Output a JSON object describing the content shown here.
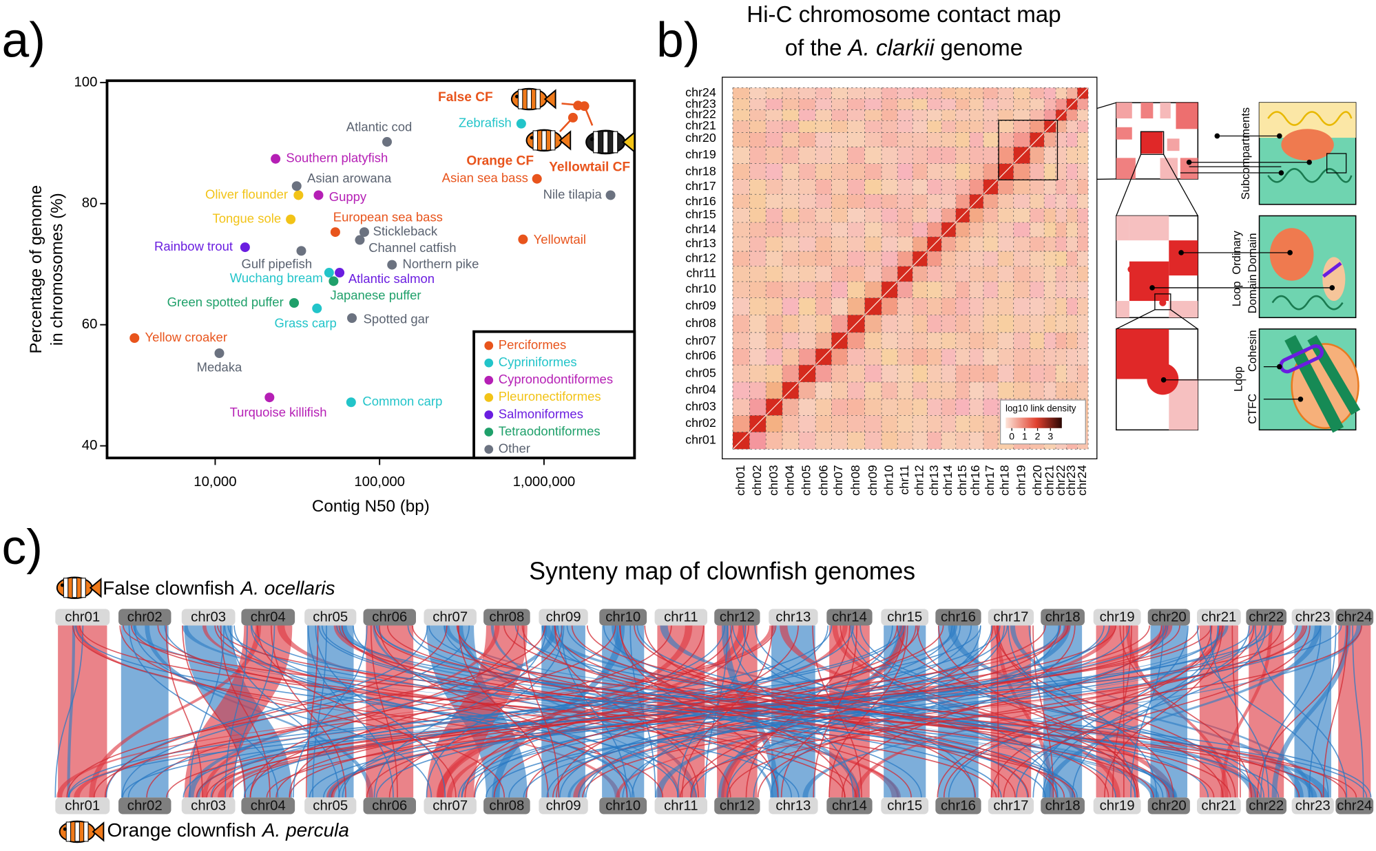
{
  "panel_labels": [
    "a)",
    "b)",
    "c)"
  ],
  "chart_data": [
    {
      "type": "scatter",
      "xlabel": "Contig N50 (bp)",
      "ylabel": [
        "Percentage of genome",
        "in chromosomes (%)"
      ],
      "log_x": true,
      "xlim": [
        2200,
        3550000
      ],
      "ylim": [
        38,
        100.3
      ],
      "xticks": [
        {
          "value": 10000,
          "label": "10,000"
        },
        {
          "value": 100000,
          "label": "100,000"
        },
        {
          "value": 1000000,
          "label": "1,000,000"
        }
      ],
      "yticks": [
        40,
        60,
        80,
        100
      ],
      "legend": "lower right",
      "series": [
        {
          "name": "Perciformes",
          "color": "#e8541c",
          "labels": [
            "European sea bass",
            "Yellow croaker",
            "Asian sea bass",
            "Yellowtail",
            "False CF",
            "Orange CF",
            "Yellowtail CF"
          ],
          "x": [
            53800,
            3230,
            906000,
            745000,
            1610000,
            1500000,
            1760000
          ],
          "values": [
            75.3,
            57.8,
            84.1,
            74.1,
            96.2,
            94.2,
            96.1
          ]
        },
        {
          "name": "Cypriniformes",
          "color": "#22c4c9",
          "labels": [
            "Zebrafish",
            "Wuchang bream",
            "Grass carp",
            "Common carp"
          ],
          "x": [
            727000,
            49300,
            41600,
            67100
          ],
          "values": [
            93.2,
            68.6,
            62.7,
            47.2
          ]
        },
        {
          "name": "Cypronodontiformes",
          "color": "#b51fb5",
          "labels": [
            "Southern platyfish",
            "Guppy",
            "Turquoise killifish"
          ],
          "x": [
            23300,
            42500,
            21400
          ],
          "values": [
            87.4,
            81.4,
            48.0
          ]
        },
        {
          "name": "Pleuronectiformes",
          "color": "#f2c317",
          "labels": [
            "Oliver flounder",
            "Tongue sole"
          ],
          "x": [
            32100,
            28800
          ],
          "values": [
            81.4,
            77.4
          ]
        },
        {
          "name": "Salmoniformes",
          "color": "#6a1de0",
          "labels": [
            "Rainbow trout",
            "Atlantic salmon"
          ],
          "x": [
            15200,
            57100
          ],
          "values": [
            72.8,
            68.6
          ]
        },
        {
          "name": "Tetraodontiformes",
          "color": "#1fa06a",
          "labels": [
            "Japanese puffer",
            "Green spotted puffer"
          ],
          "x": [
            52500,
            30200
          ],
          "values": [
            67.2,
            63.6
          ]
        },
        {
          "name": "Other",
          "color": "#6b7280",
          "labels": [
            "Atlantic cod",
            "Asian arowana",
            "Stickleback",
            "Channel catfish",
            "Gulf pipefish",
            "Northern pike",
            "Spotted gar",
            "Medaka",
            "Nile tilapia"
          ],
          "x": [
            111000,
            31300,
            80700,
            75800,
            33400,
            119000,
            67900,
            10600,
            2540000
          ],
          "values": [
            90.2,
            82.9,
            75.3,
            74.0,
            72.2,
            69.9,
            61.1,
            55.3,
            81.4
          ]
        }
      ]
    },
    {
      "type": "heatmap",
      "title": [
        "Hi-C chromosome contact map",
        "of the",
        "A. clarkii",
        "genome"
      ],
      "categories": [
        "chr01",
        "chr02",
        "chr03",
        "chr04",
        "chr05",
        "chr06",
        "chr07",
        "chr08",
        "chr09",
        "chr10",
        "chr11",
        "chr12",
        "chr13",
        "chr14",
        "chr15",
        "chr16",
        "chr17",
        "chr18",
        "chr19",
        "chr20",
        "chr21",
        "chr22",
        "chr23",
        "chr24"
      ],
      "colorbar_label": "log10 link density",
      "colorbar_ticks": [
        0,
        1,
        2,
        3
      ],
      "annotations": [
        "Subcompartments",
        "Ordinary",
        "Domain",
        "Loop",
        "Domain",
        "Cohesin",
        "Loop",
        "CTFC"
      ]
    },
    {
      "type": "synteny",
      "title": "Synteny map of clownfish genomes",
      "top_genome": [
        "False clownfish",
        "A. ocellaris"
      ],
      "bottom_genome": [
        "Orange clownfish",
        "A. percula"
      ],
      "top_chromosomes": [
        "chr01",
        "chr02",
        "chr03",
        "chr04",
        "chr05",
        "chr06",
        "chr07",
        "chr08",
        "chr09",
        "chr10",
        "chr11",
        "chr12",
        "chr13",
        "chr14",
        "chr15",
        "chr16",
        "chr17",
        "chr18",
        "chr19",
        "chr20",
        "chr21",
        "chr22",
        "chr23",
        "chr24"
      ],
      "bottom_chromosomes": [
        "chr01",
        "chr02",
        "chr03",
        "chr04",
        "chr05",
        "chr06",
        "chr07",
        "chr08",
        "chr09",
        "chr10",
        "chr11",
        "chr12",
        "chr13",
        "chr14",
        "chr15",
        "chr16",
        "chr17",
        "chr18",
        "chr19",
        "chr20",
        "chr21",
        "chr22",
        "chr23",
        "chr24"
      ]
    }
  ]
}
